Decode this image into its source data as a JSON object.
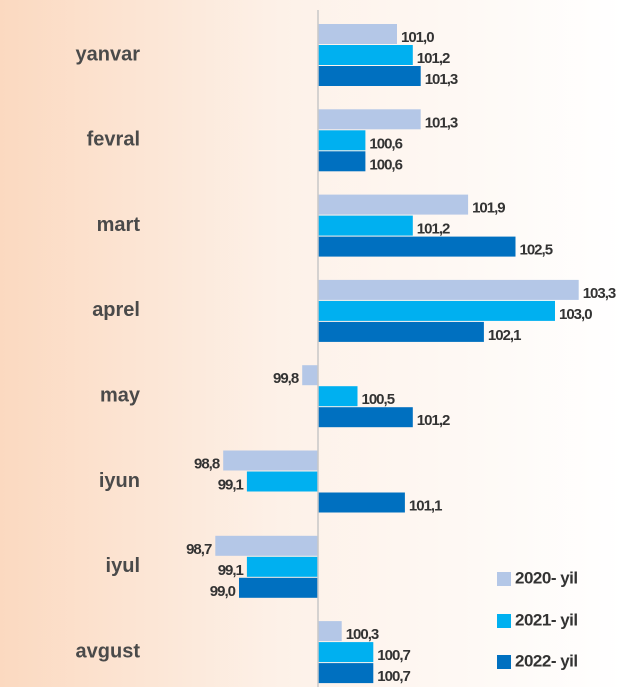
{
  "chart_data": {
    "type": "bar",
    "orientation": "horizontal",
    "categories": [
      "yanvar",
      "fevral",
      "mart",
      "aprel",
      "may",
      "iyun",
      "iyul",
      "avgust"
    ],
    "base": 100,
    "xlim": [
      98.5,
      103.5
    ],
    "legend": "lower right",
    "series": [
      {
        "name": "2020- yil",
        "color": "#b4c7e7",
        "values": [
          101.0,
          101.3,
          101.9,
          103.3,
          99.8,
          98.8,
          98.7,
          100.3
        ],
        "value_labels": [
          "101,0",
          "101,3",
          "101,9",
          "103,3",
          "99,8",
          "98,8",
          "98,7",
          "100,3"
        ]
      },
      {
        "name": "2021- yil",
        "color": "#00b0f0",
        "values": [
          101.2,
          100.6,
          101.2,
          103.0,
          100.5,
          99.1,
          99.1,
          100.7
        ],
        "value_labels": [
          "101,2",
          "100,6",
          "101,2",
          "103,0",
          "100,5",
          "99,1",
          "99,1",
          "100,7"
        ]
      },
      {
        "name": "2022- yil",
        "color": "#0070c0",
        "values": [
          101.3,
          100.6,
          102.5,
          102.1,
          101.2,
          101.1,
          99.0,
          100.7
        ],
        "value_labels": [
          "101,3",
          "100,6",
          "102,5",
          "102,1",
          "101,2",
          "101,1",
          "99,0",
          "100,7"
        ]
      }
    ]
  }
}
